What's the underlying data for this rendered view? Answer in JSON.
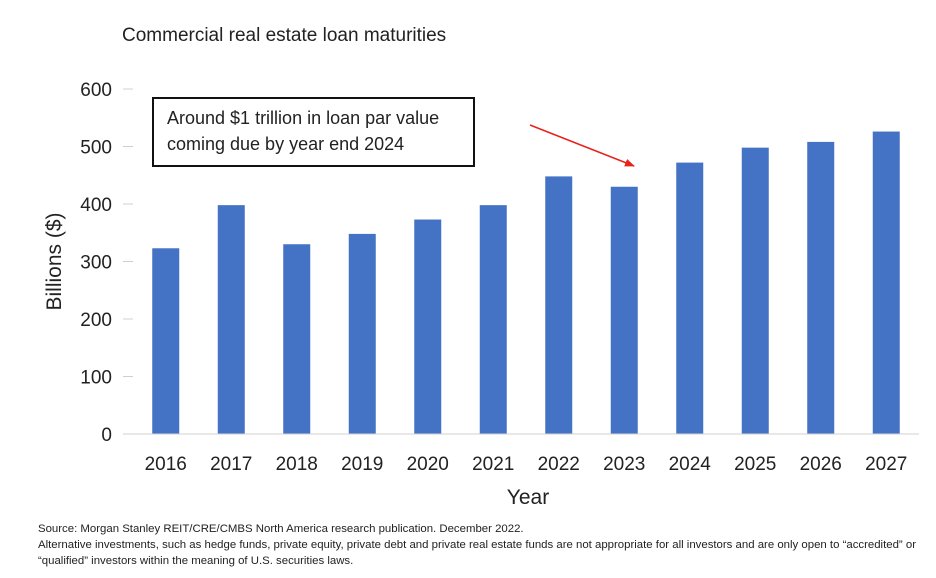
{
  "chart_data": {
    "type": "bar",
    "title": "Commercial real estate loan maturities",
    "xlabel": "Year",
    "ylabel": "Billions ($)",
    "ylim": [
      0,
      600
    ],
    "yticks": [
      0,
      100,
      200,
      300,
      400,
      500,
      600
    ],
    "grid": false,
    "categories": [
      "2016",
      "2017",
      "2018",
      "2019",
      "2020",
      "2021",
      "2022",
      "2023",
      "2024",
      "2025",
      "2026",
      "2027"
    ],
    "values": [
      323,
      398,
      330,
      348,
      373,
      398,
      448,
      430,
      472,
      498,
      508,
      526
    ],
    "bar_color": "#4472C4",
    "annotation": {
      "lines": [
        "Around $1 trillion in loan par value",
        "coming due by year end 2024"
      ],
      "arrow_color": "#E8231C",
      "points_to": "2023"
    }
  },
  "footnotes": [
    "Source: Morgan Stanley REIT/CRE/CMBS North America research publication. December 2022.",
    "Alternative investments, such as hedge funds, private equity, private debt and private real estate funds are not appropriate for all investors and are only open to “accredited” or",
    "“qualified” investors within the meaning of U.S. securities laws."
  ]
}
